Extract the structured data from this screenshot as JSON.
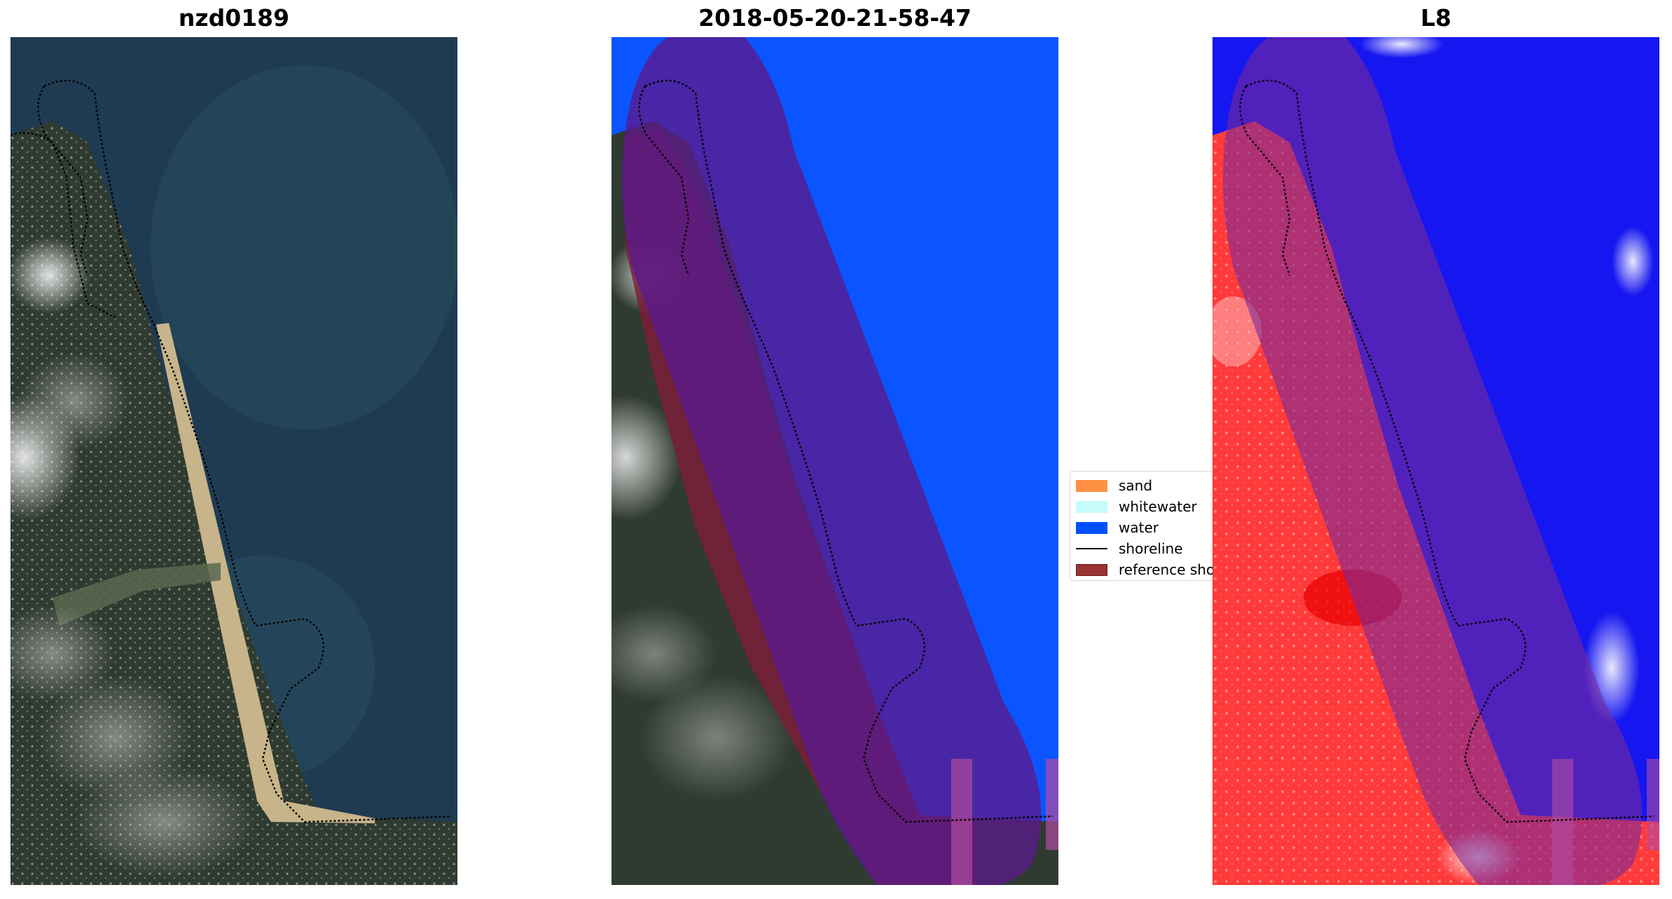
{
  "panels": [
    {
      "title": "nzd0189"
    },
    {
      "title": "2018-05-20-21-58-47"
    },
    {
      "title": "L8"
    }
  ],
  "legend": {
    "items": [
      {
        "label": "sand",
        "color": "#ff9144"
      },
      {
        "label": "whitewater",
        "color": "#c6fcfc"
      },
      {
        "label": "water",
        "color": "#0050ff"
      },
      {
        "label": "shoreline",
        "color": "#000000"
      },
      {
        "label": "reference shoreline buffer",
        "color": "#993333"
      }
    ]
  },
  "colors": {
    "ocean": "#1f3b52",
    "land": "#2f3a30",
    "beach": "#c7b48a",
    "classified_water": "#0a55ff",
    "buffer": "#5b1a8c",
    "ndwi_land": "#ff3a3a",
    "ndwi_water": "#1616f0"
  }
}
